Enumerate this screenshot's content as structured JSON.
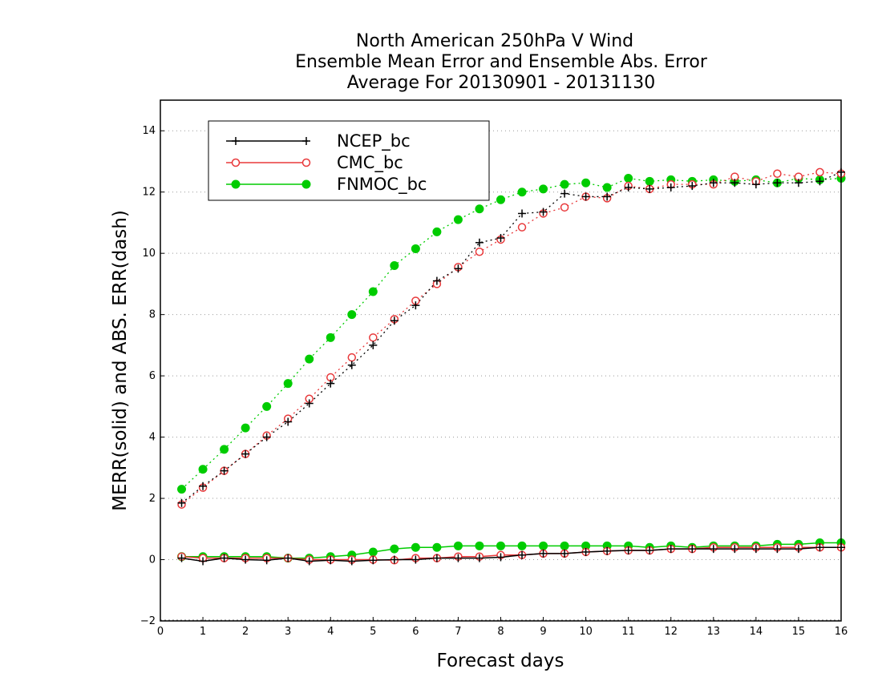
{
  "chart_data": {
    "type": "line",
    "title": [
      "North American 250hPa V Wind",
      "Ensemble Mean Error and Ensemble Abs. Error",
      "Average For 20130901 - 20131130"
    ],
    "xlabel": "Forecast days",
    "ylabel": "MERR(solid) and ABS. ERR(dash)",
    "xlim": [
      0,
      16
    ],
    "ylim": [
      -2,
      15
    ],
    "x_ticks": [
      0,
      1,
      2,
      3,
      4,
      5,
      6,
      7,
      8,
      9,
      10,
      11,
      12,
      13,
      14,
      15,
      16
    ],
    "y_ticks": [
      -2,
      0,
      2,
      4,
      6,
      8,
      10,
      12,
      14
    ],
    "grid": "horizontal dotted",
    "legend_position": "top-left",
    "x": [
      0.5,
      1,
      1.5,
      2,
      2.5,
      3,
      3.5,
      4,
      4.5,
      5,
      5.5,
      6,
      6.5,
      7,
      7.5,
      8,
      8.5,
      9,
      9.5,
      10,
      10.5,
      11,
      11.5,
      12,
      12.5,
      13,
      13.5,
      14,
      14.5,
      15,
      15.5,
      16
    ],
    "series": [
      {
        "name": "NCEP_bc",
        "color": "#000000",
        "marker": "plus",
        "abs_err": [
          1.85,
          2.4,
          2.9,
          3.45,
          4.0,
          4.5,
          5.1,
          5.75,
          6.35,
          7.0,
          7.8,
          8.3,
          9.1,
          9.5,
          10.35,
          10.5,
          11.3,
          11.35,
          11.95,
          11.85,
          11.85,
          12.15,
          12.1,
          12.15,
          12.2,
          12.3,
          12.3,
          12.25,
          12.3,
          12.3,
          12.35,
          12.65
        ],
        "mean_err": [
          0.05,
          -0.05,
          0.05,
          0.0,
          -0.02,
          0.05,
          -0.05,
          -0.02,
          -0.05,
          -0.02,
          0.0,
          0.0,
          0.05,
          0.05,
          0.05,
          0.08,
          0.15,
          0.2,
          0.2,
          0.25,
          0.28,
          0.3,
          0.3,
          0.35,
          0.35,
          0.35,
          0.35,
          0.35,
          0.35,
          0.35,
          0.4,
          0.4
        ]
      },
      {
        "name": "CMC_bc",
        "color": "#e8383a",
        "marker": "open-circle",
        "abs_err": [
          1.8,
          2.35,
          2.9,
          3.45,
          4.05,
          4.6,
          5.25,
          5.95,
          6.6,
          7.25,
          7.85,
          8.45,
          9.0,
          9.55,
          10.05,
          10.45,
          10.85,
          11.3,
          11.5,
          11.85,
          11.8,
          12.2,
          12.1,
          12.25,
          12.25,
          12.25,
          12.5,
          12.35,
          12.6,
          12.5,
          12.65,
          12.6
        ],
        "mean_err": [
          0.1,
          0.05,
          0.05,
          0.05,
          0.05,
          0.05,
          0.0,
          0.0,
          0.0,
          0.0,
          -0.02,
          0.05,
          0.05,
          0.1,
          0.1,
          0.15,
          0.15,
          0.2,
          0.2,
          0.25,
          0.28,
          0.3,
          0.3,
          0.35,
          0.35,
          0.4,
          0.4,
          0.4,
          0.4,
          0.4,
          0.4,
          0.4
        ]
      },
      {
        "name": "FNMOC_bc",
        "color": "#00cc00",
        "marker": "filled-circle",
        "abs_err": [
          2.3,
          2.95,
          3.6,
          4.3,
          5.0,
          5.75,
          6.55,
          7.25,
          8.0,
          8.75,
          9.6,
          10.15,
          10.7,
          11.1,
          11.45,
          11.75,
          12.0,
          12.1,
          12.25,
          12.3,
          12.15,
          12.45,
          12.35,
          12.4,
          12.35,
          12.4,
          12.35,
          12.4,
          12.3,
          12.45,
          12.4,
          12.45
        ],
        "mean_err": [
          0.1,
          0.1,
          0.1,
          0.1,
          0.1,
          0.05,
          0.05,
          0.1,
          0.15,
          0.25,
          0.35,
          0.4,
          0.4,
          0.45,
          0.45,
          0.45,
          0.45,
          0.45,
          0.45,
          0.45,
          0.45,
          0.45,
          0.4,
          0.45,
          0.4,
          0.45,
          0.45,
          0.45,
          0.5,
          0.5,
          0.55,
          0.55
        ]
      }
    ]
  }
}
